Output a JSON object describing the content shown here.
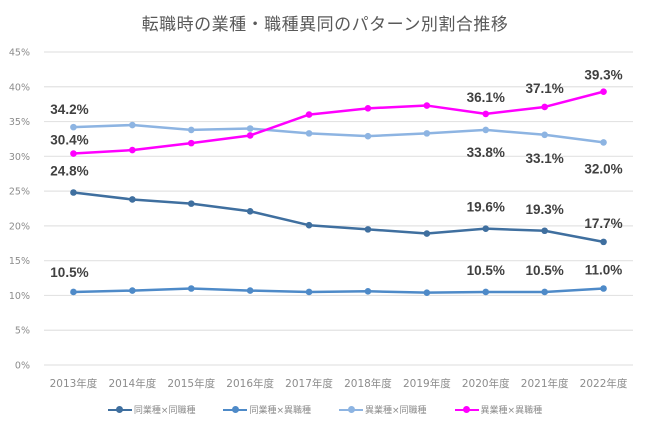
{
  "chart_data": {
    "type": "line",
    "title": "転職時の業種・職種異同のパターン別割合推移",
    "xlabel": "",
    "ylabel": "",
    "ylim": [
      0,
      45
    ],
    "yticks": [
      "0%",
      "5%",
      "10%",
      "15%",
      "20%",
      "25%",
      "30%",
      "35%",
      "40%",
      "45%"
    ],
    "ytick_values": [
      0,
      5,
      10,
      15,
      20,
      25,
      30,
      35,
      40,
      45
    ],
    "grid": true,
    "legend_position": "bottom",
    "categories": [
      "2013年度",
      "2014年度",
      "2015年度",
      "2016年度",
      "2017年度",
      "2018年度",
      "2019年度",
      "2020年度",
      "2021年度",
      "2022年度"
    ],
    "series": [
      {
        "name": "同業種×同職種",
        "color": "#3f6f9f",
        "values": [
          24.8,
          23.8,
          23.2,
          22.1,
          20.1,
          19.5,
          18.9,
          19.6,
          19.3,
          17.7
        ],
        "labels": [
          {
            "index": 0,
            "text": "24.8%"
          },
          {
            "index": 7,
            "text": "19.6%"
          },
          {
            "index": 8,
            "text": "19.3%"
          },
          {
            "index": 9,
            "text": "17.7%"
          }
        ]
      },
      {
        "name": "同業種×異職種",
        "color": "#4e8ac8",
        "values": [
          10.5,
          10.7,
          11.0,
          10.7,
          10.5,
          10.6,
          10.4,
          10.5,
          10.5,
          11.0
        ],
        "labels": [
          {
            "index": 0,
            "text": "10.5%"
          },
          {
            "index": 7,
            "text": "10.5%"
          },
          {
            "index": 8,
            "text": "10.5%"
          },
          {
            "index": 9,
            "text": "11.0%"
          }
        ]
      },
      {
        "name": "異業種×同職種",
        "color": "#8db4e2",
        "values": [
          34.2,
          34.5,
          33.8,
          34.0,
          33.3,
          32.9,
          33.3,
          33.8,
          33.1,
          32.0
        ],
        "labels": [
          {
            "index": 0,
            "text": "34.2%"
          },
          {
            "index": 7,
            "text": "33.8%"
          },
          {
            "index": 8,
            "text": "33.1%"
          },
          {
            "index": 9,
            "text": "32.0%"
          }
        ]
      },
      {
        "name": "異業種×異職種",
        "color": "#ff00ff",
        "values": [
          30.4,
          30.9,
          31.9,
          33.0,
          36.0,
          36.9,
          37.3,
          36.1,
          37.1,
          39.3
        ],
        "labels": [
          {
            "index": 0,
            "text": "30.4%"
          },
          {
            "index": 7,
            "text": "36.1%"
          },
          {
            "index": 8,
            "text": "37.1%"
          },
          {
            "index": 9,
            "text": "39.3%"
          }
        ]
      }
    ]
  }
}
